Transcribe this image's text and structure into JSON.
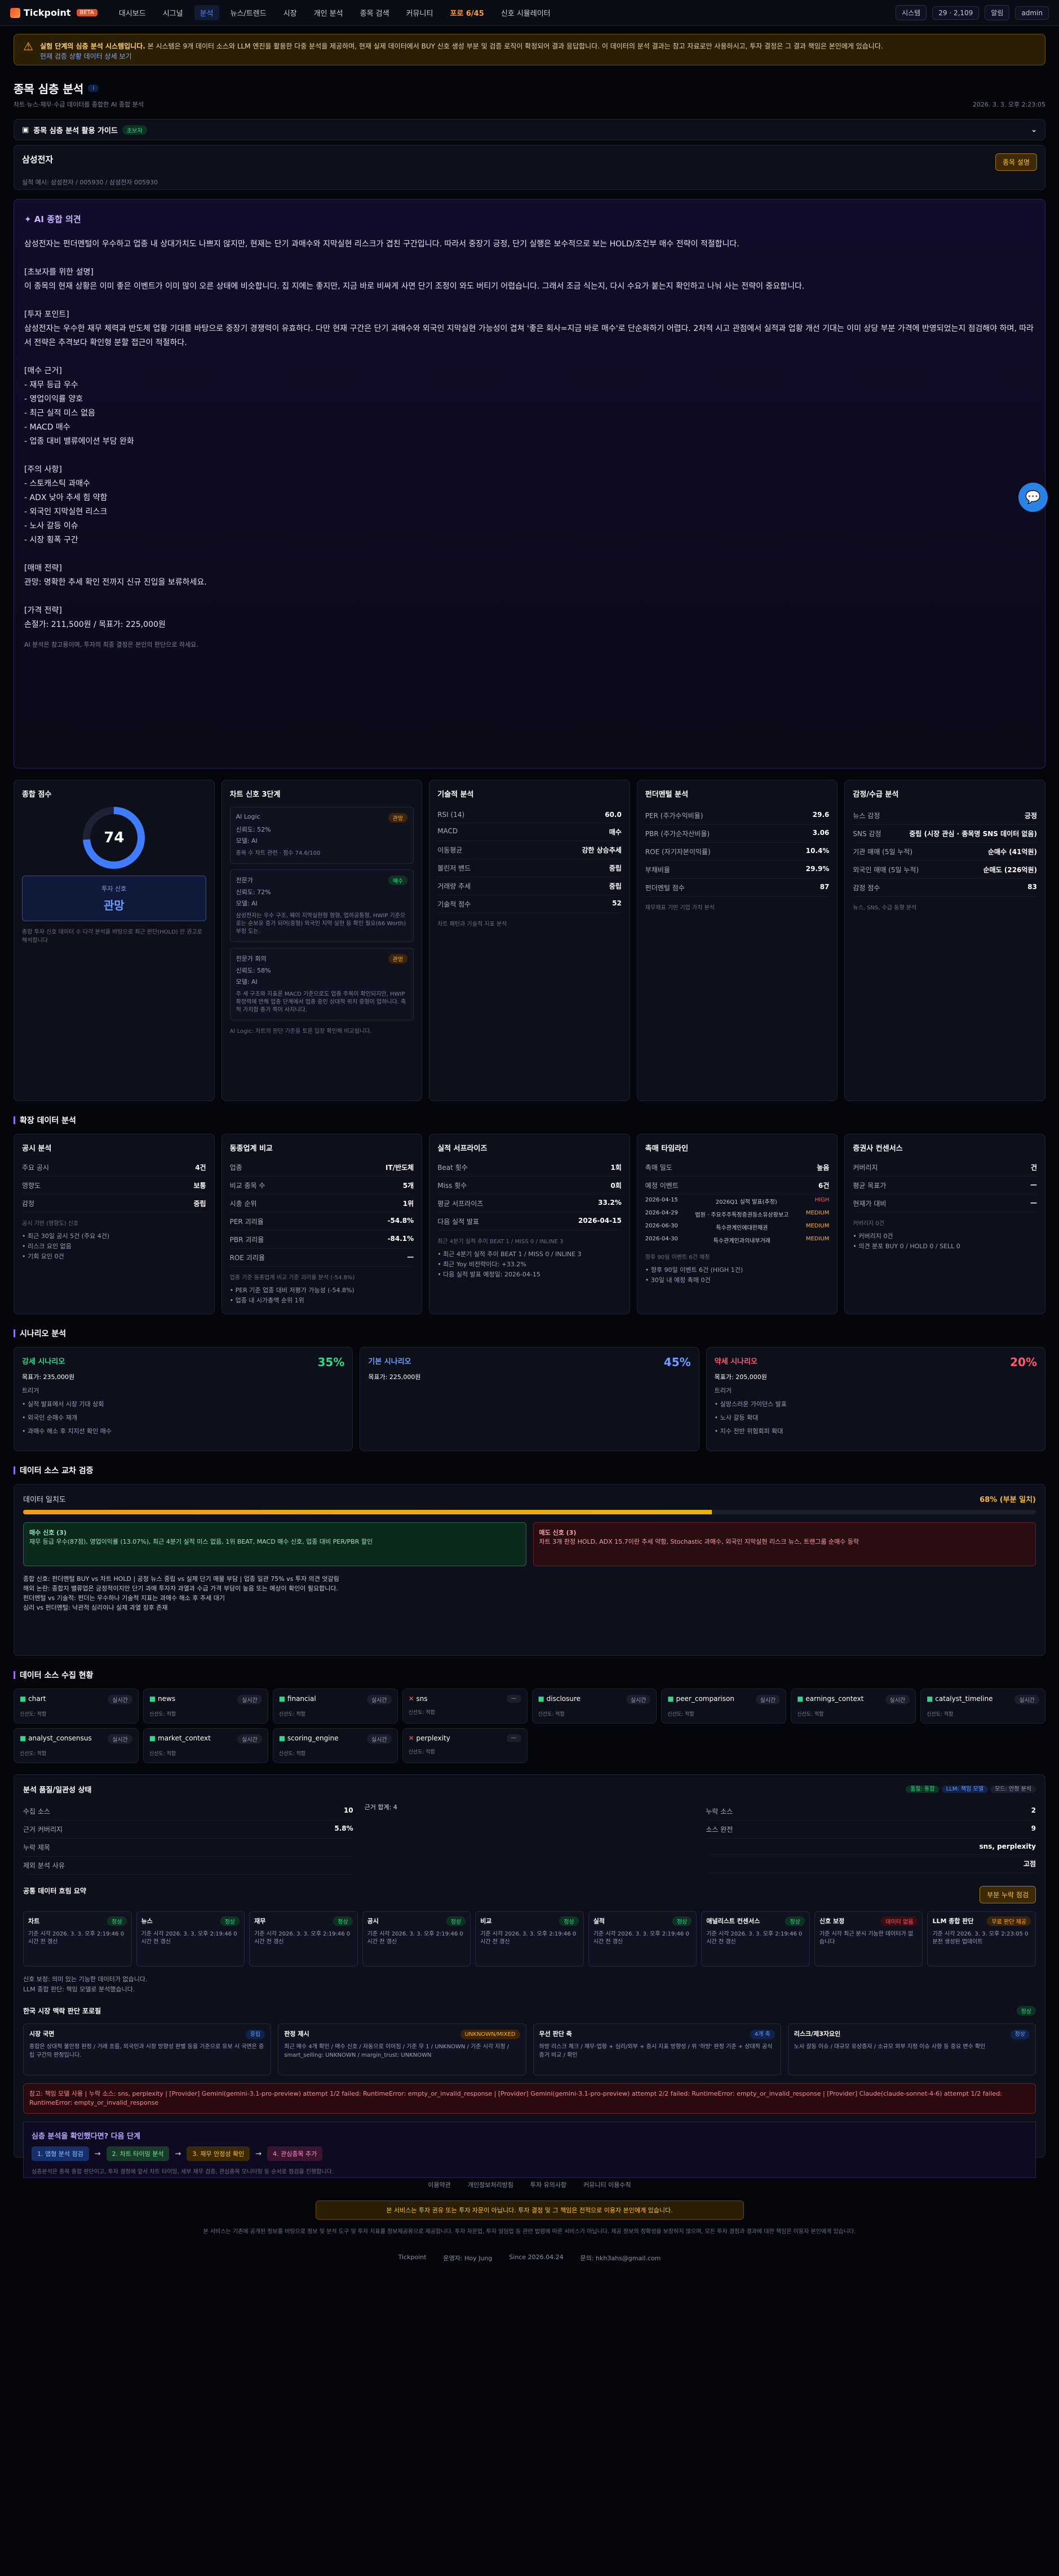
{
  "nav": {
    "brand": "Tickpoint",
    "badge": "BETA",
    "items": [
      "대시보드",
      "시그널",
      "분석",
      "뉴스/트렌드",
      "시장",
      "개인 분석",
      "종목 검색",
      "커뮤니티",
      "포로 6/45",
      "신호 시뮬레이터"
    ],
    "right": [
      "시스템",
      "29",
      "2,109",
      "알림",
      "admin"
    ]
  },
  "warning": {
    "title": "실험 단계의 심층 분석 시스템입니다.",
    "text": " 본 시스템은 9개 데이터 소스와 LLM 엔진을 활용한 다중 분석을 제공하며, 현재 실제 데이터에서 BUY 신호 생성 부분 및 검증 로직이 확정되어 결과 응답합니다. 이 데이터의 분석 결과는 참고 자료로만 사용하시고, 투자 결정은 그 결과 책임은 본인에게 있습니다.",
    "link": "현재 검증 상황 데이터 상세 보기"
  },
  "header": {
    "title": "종목 심층 분석",
    "sub": "차트·뉴스·재무·수급 데이터를 종합한 AI 종합 분석",
    "date": "2026. 3. 3. 오후 2:23:05"
  },
  "guide": {
    "label": "종목 심층 분석 활용 가이드",
    "tag": "초보자"
  },
  "stock": {
    "name": "삼성전자",
    "meta": "실적 예시: 삼성전자 / 005930 / 삼성전자 005930",
    "button": "종목 설명"
  },
  "ai": {
    "title": "AI 종합 의견",
    "body": "삼성전자는 펀더멘털이 우수하고 업종 내 상대가치도 나쁘지 않지만, 현재는 단기 과매수와 지막실현 리스크가 겹친 구간입니다. 따라서 중장기 긍정, 단기 실행은 보수적으로 보는 HOLD/조건부 매수 전략이 적절합니다.\n\n[초보자를 위한 설명]\n이 종목의 현재 상황은 이미 좋은 이벤트가 이미 많이 오른 상태에 비슷합니다. 집 지에는 좋지만, 지금 바로 비싸게 사면 단기 조정이 와도 버티기 어렵습니다. 그래서 조금 식는지, 다시 수요가 붙는지 확인하고 나눠 사는 전략이 중요합니다.\n\n[투자 포인트]\n삼성전자는 우수한 재무 체력과 반도체 업황 기대를 바탕으로 중장기 경쟁력이 유효하다. 다만 현재 구간은 단기 과매수와 외국인 지막실현 가능성이 겹쳐 '좋은 회사=지금 바로 매수'로 단순화하기 어렵다. 2차적 시고 관점에서 실적과 업황 개선 기대는 이미 상당 부분 가격에 반영되었는지 점검해야 하며, 따라서 전략은 추격보다 확인형 분할 접근이 적절하다.\n\n[매수 근거]\n- 재무 등급 우수\n- 영업이익률 양호\n- 최근 실적 미스 없음\n- MACD 매수\n- 업종 대비 밸류에이션 부담 완화\n\n[주의 사항]\n- 스토캐스틱 과매수\n- ADX 낮아 추세 힘 약함\n- 외국인 지막실현 리스크\n- 노사 갈등 이슈\n- 시장 횡폭 구간\n\n[매매 전략]\n관망: 명확한 추세 확인 전까지 신규 진입을 보류하세요.\n\n[가격 전략]\n손절가: 211,500원 / 목표가: 225,000원",
    "foot": "AI 분석은 참고용이며, 투자의 최종 결정은 본인의 판단으로 하세요."
  },
  "cards": {
    "score": {
      "title": "종합 점수",
      "value": "74",
      "label": "투자 신호",
      "opinion": "관망",
      "note": "종합 투자 신호 데이터 수 다각 분석을 바탕으로 최근 판단(HOLD) 만 권고로 해석합니다"
    },
    "signals": {
      "title": "차트 신호 3단계",
      "items": [
        {
          "name": "AI Logic",
          "tag": "관망",
          "conf": "신뢰도: 52%",
          "model": "모델: AI",
          "desc": "종목 수 차트 관련 · 점수 74.6/100"
        },
        {
          "name": "전문가",
          "tag": "매수",
          "conf": "신뢰도: 72%",
          "model": "모델: AI",
          "desc": "삼성전자는 우수 구조, 웨이 지막실현형 형형, 업하공통형, HWIP 기준으로는 순보유 증가 되어(중형) 외국인 지막 실현 등 확인 필요(66 Worth) 부정 도는."
        },
        {
          "name": "전문가 회의",
          "tag": "관망",
          "conf": "신뢰도: 58%",
          "model": "모델: AI",
          "desc": "주 세 구조와 지표론 MACD 기준으로도 업종 주목이 확인되지만, HWIP 확정력에 반해 업종 단계에서 업종 중인 상대적 위치 중형이 업하니다. 축적 가치합 종가 쪽이 사지니다."
        }
      ],
      "note": "AI Logic: 차트의 판단 기준을 토론 입장 확인해 비교됩니다."
    },
    "tech": {
      "title": "기술적 분석",
      "rows": [
        [
          "RSI (14)",
          "60.0"
        ],
        [
          "MACD",
          "매수"
        ],
        [
          "이동평균",
          "강한 상승추세"
        ],
        [
          "볼린저 밴드",
          "중립"
        ],
        [
          "거래량 추세",
          "중립"
        ],
        [
          "기술적 점수",
          "52"
        ]
      ],
      "note": "차트 패턴과 기술적 지표 분석"
    },
    "fund": {
      "title": "펀더멘털 분석",
      "rows": [
        [
          "PER (주가수익비율)",
          "29.6"
        ],
        [
          "PBR (주가순자산비율)",
          "3.06"
        ],
        [
          "ROE (자기자본이익률)",
          "10.4%"
        ],
        [
          "부채비율",
          "29.9%"
        ],
        [
          "펀더멘털 점수",
          "87"
        ]
      ],
      "note": "재무제표 기반 기업 가치 분석"
    },
    "sent": {
      "title": "감정/수급 분석",
      "rows": [
        [
          "뉴스 감정",
          "긍정"
        ],
        [
          "SNS 감정",
          "중립 (시장 관심 · 종목명 SNS 데이터 없음)"
        ],
        [
          "기관 매매 (5일 누적)",
          "순매수 (41억원)"
        ],
        [
          "외국인 매매 (5일 누적)",
          "순매도 (226억원)"
        ],
        [
          "감정 점수",
          "83"
        ]
      ],
      "note": "뉴스, SNS, 수급 동향 분석"
    }
  },
  "ext": {
    "title": "확장 데이터 분석",
    "disc": {
      "title": "공시 분석",
      "rows": [
        [
          "주요 공시",
          "4건"
        ],
        [
          "영향도",
          "보통"
        ],
        [
          "감정",
          "중립"
        ]
      ],
      "note": "공시 기반 (영향도) 신호",
      "list": [
        "최근 30일 공시 5건 (주요 4건)",
        "리스크 요인 없음",
        "기회 요인 0건"
      ]
    },
    "peer": {
      "title": "동종업계 비교",
      "rows": [
        [
          "업종",
          "IT/반도체"
        ],
        [
          "비교 종목 수",
          "5개"
        ],
        [
          "시총 순위",
          "1위"
        ],
        [
          "PER 괴리율",
          "-54.8%"
        ],
        [
          "PBR 괴리율",
          "-84.1%"
        ],
        [
          "ROE 괴리율",
          "—"
        ]
      ],
      "note": "업종 기준 동종업계 비교 기준 괴리율 분석 (-54.8%)",
      "list": [
        "PER 기준 업종 대비 저평가 가능성 (-54.8%)",
        "업종 내 시가총액 순위 1위"
      ]
    },
    "earn": {
      "title": "실적 서프라이즈",
      "rows": [
        [
          "Beat 횟수",
          "1회"
        ],
        [
          "Miss 횟수",
          "0회"
        ],
        [
          "평균 서프라이즈",
          "33.2%"
        ],
        [
          "다음 실적 발표",
          "2026-04-15"
        ]
      ],
      "note": "최근 4분기 실적 추이 BEAT 1 / MISS 0 / INLINE 3",
      "list": [
        "최근 4분기 실적 추이 BEAT 1 / MISS 0 / INLINE 3",
        "최근 Yoy 비전략이다: +33.2%",
        "다음 실적 발표 예정일: 2026-04-15"
      ]
    },
    "cat": {
      "title": "촉매 타임라인",
      "rows": [
        [
          "촉매 밀도",
          "높음"
        ],
        [
          "예정 이벤트",
          "6건"
        ]
      ],
      "events": [
        [
          "2026-04-15",
          "2026Q1 실적 발표(추정)",
          "HIGH"
        ],
        [
          "2026-04-29",
          "법원 · 주요주주특정증권등소유상황보고",
          "MEDIUM"
        ],
        [
          "2026-06-30",
          "특수관계인에대한채권",
          "MEDIUM"
        ],
        [
          "2026-04-30",
          "특수관계인과의내부거래",
          "MEDIUM"
        ]
      ],
      "note": "향후 90일 이벤트 6건 예정",
      "list": [
        "향후 90일 이벤트 6건 (HIGH 1건)",
        "30일 내 예정 촉매 0건"
      ]
    },
    "cons": {
      "title": "증권사 컨센서스",
      "rows": [
        [
          "커버리지",
          "건"
        ],
        [
          "평균 목표가",
          "—"
        ],
        [
          "현재가 대비",
          "—"
        ]
      ],
      "note": "커버리지 0건",
      "list": [
        "커버리지 0건",
        "의견 분포 BUY 0 / HOLD 0 / SELL 0"
      ]
    }
  },
  "scen": {
    "title": "시나리오 분석",
    "items": [
      {
        "name": "강세 시나리오",
        "pct": "35%",
        "target": "목표가: 235,000원",
        "label": "트리거",
        "list": [
          "실적 발표에서 시장 기대 상회",
          "외국인 순매수 재개",
          "과매수 해소 후 지지선 확인 매수"
        ]
      },
      {
        "name": "기본 시나리오",
        "pct": "45%",
        "target": "목표가: 225,000원",
        "label": "",
        "list": []
      },
      {
        "name": "약세 시나리오",
        "pct": "20%",
        "target": "목표가: 205,000원",
        "label": "트리거",
        "list": [
          "실망스러운 가이던스 발표",
          "노사 갈등 확대",
          "지수 전반 위험회피 확대"
        ]
      }
    ]
  },
  "verify": {
    "title": "데이터 소스 교차 검증",
    "label": "데이터 일치도",
    "value": "68% (부분 일치)",
    "pct": 68,
    "buy": "매수 신호 (3)",
    "buytxt": "재무 등급 우수(87점), 영업이익률 (13.07%), 최근 4분기 실적 미스 없음, 1위 BEAT, MACD 매수 신호, 업종 대비 PER/PBR 할인",
    "sell": "매도 신호 (3)",
    "selltxt": "차트 3개 판정 HOLD, ADX 15.7이란 추세 약함, Stochastic 과매수, 외국인 지막실현 리스크 뉴스, 트랜그룹 순매수 등락",
    "lines": [
      "종합 신호: 펀더멘털 BUY vs 차트 HOLD | 공정 뉴스 중립 vs 실제 단기 매물 부담 | 업종 일관 75% vs 투자 의견 엇갈림",
      "해외 논란: 종합지 밸류업은 긍정적이지만 단기 과매 투자자 과열과 수급 가격 부담이 높음 또는 예상이 확인이 필요합니다.",
      "펀더멘털 vs 기술적: 펀더는 우수하나 기술적 지표는 과매수 해소 후 추세 대기",
      "심리 vs 펀더멘털: 낙관적 심리이나 실제 과열 징후 존재"
    ]
  },
  "sources": {
    "title": "데이터 소스 수집 현황",
    "items": [
      [
        "chart",
        "ok",
        "실시간"
      ],
      [
        "news",
        "ok",
        "실시간"
      ],
      [
        "financial",
        "ok",
        "실시간"
      ],
      [
        "sns",
        "x",
        "—"
      ],
      [
        "disclosure",
        "ok",
        "실시간"
      ],
      [
        "peer_comparison",
        "ok",
        "실시간"
      ],
      [
        "earnings_context",
        "ok",
        "실시간"
      ],
      [
        "catalyst_timeline",
        "ok",
        "실시간"
      ],
      [
        "analyst_consensus",
        "ok",
        "실시간"
      ],
      [
        "market_context",
        "ok",
        "실시간"
      ],
      [
        "scoring_engine",
        "ok",
        "실시간"
      ],
      [
        "perplexity",
        "x",
        "—"
      ]
    ],
    "meta": "신선도: 적합"
  },
  "status": {
    "title": "분석 품질/일관성 상태",
    "tags": [
      "품질: 통합",
      "LLM: 책임 모델",
      "모드: 안정 분석"
    ],
    "left": [
      [
        "수집 소스",
        "10"
      ],
      [
        "근거 커버리지",
        "5.8%"
      ],
      [
        "누락 제목",
        ""
      ],
      [
        "제외 분석 사유",
        ""
      ]
    ],
    "mid": "근거 합계: 4",
    "right": [
      [
        "누락 소스",
        "2"
      ],
      [
        "소스 완전",
        "9"
      ],
      [
        "",
        "sns, perplexity"
      ],
      [
        "",
        "고점"
      ]
    ],
    "pipeline": "공통 데이터 흐림 요약",
    "pbtn": "부분 누락 점검",
    "steps": [
      [
        "차트",
        "정상",
        "기준 시각 2026. 3. 3. 오후 2:19:46 0시간 전 갱신"
      ],
      [
        "뉴스",
        "정상",
        "기준 시각 2026. 3. 3. 오후 2:19:46 0시간 전 갱신"
      ],
      [
        "재무",
        "정상",
        "기준 시각 2026. 3. 3. 오후 2:19:46 0시간 전 갱신"
      ],
      [
        "공시",
        "정상",
        "기준 시각 2026. 3. 3. 오후 2:19:46 0시간 전 갱신"
      ],
      [
        "비교",
        "정상",
        "기준 시각 2026. 3. 3. 오후 2:19:46 0시간 전 갱신"
      ],
      [
        "실적",
        "정상",
        "기준 시각 2026. 3. 3. 오후 2:19:46 0시간 전 갱신"
      ],
      [
        "애널리스트 컨센서스",
        "정상",
        "기준 시각 2026. 3. 3. 오후 2:19:46 0시간 전 갱신"
      ],
      [
        "신호 보정",
        "데이터 없음",
        "기준 시각 최근 분시 기능한 데이터가 없습니다"
      ],
      [
        "LLM 종합 판단",
        "무료 판단 제공",
        "기준 시각 2026. 3. 3. 오후 2:23:05 0분전 생성된 업데이트"
      ]
    ],
    "smtitle": "한국 시장 맥락 판단 포로필",
    "smtag": "정상",
    "sm": [
      [
        "시장 국면",
        "중립",
        "종합은 상대적 불안정 판정 / 거래 흐름, 외국인과 시장 방향성 판별 등을 기준으로 유보 시 국면은 중립 구간의 판정입니다."
      ],
      [
        "판정 제시",
        "UNKNOWN/MIXED",
        "최근 매수 4개 확인 / 매수 신호 / 자동으로 이어짐 / 기준 무 1 / UNKNOWN / 기준 시각 지정 / smart_selling: UNKNOWN / margin_trust: UNKNOWN"
      ],
      [
        "우선 판단 축",
        "4개 축",
        "하방 리스크 체크 / 재무·업황 + 심리/외부 + 증시 지표 방향성 / 위 '하방' 판정 기준 + 상대적 공식 증거 비교 / 확인"
      ],
      [
        "리스크/제3자요인",
        "정상",
        "노사 갈등 이슈 / 대규모 유상증자 / 소규모 외부 지정 이슈 사항 등 중요 변수 확인"
      ]
    ],
    "note1": "신호 보정: 의미 있는 기능한 데이터가 없습니다.",
    "note2": "LLM 종합 판단: 책임 모델로 분석했습니다."
  },
  "error": "참고: 책임 모델 사용 | 누락 소스: sns, perplexity | [Provider] Gemini(gemini-3.1-pro-preview) attempt 1/2 failed: RuntimeError: empty_or_invalid_response | [Provider] Gemini(gemini-3.1-pro-preview) attempt 2/2 failed: RuntimeError: empty_or_invalid_response | [Provider] Claude(claude-sonnet-4-6) attempt 1/2 failed: RuntimeError: empty_or_invalid_response",
  "flow": {
    "title": "심층 분석을 확인했다면? 다음 단계",
    "chips": [
      "1. 앱형 분석 점검",
      "2. 차트 타이밍 분석",
      "3. 재무 안정성 확인",
      "4. 관심종목 추가"
    ],
    "note": "심층분석은 종목 종합 판단이고, 투자 결정에 앞서 차트 타이밍, 세부 재무 검증, 관심종목 모니터링 등 순서로 점검을 진행합니다."
  },
  "footer": {
    "links": [
      "이용약관",
      "개인정보처리방침",
      "투자 유의사항",
      "커뮤니티 이용수칙"
    ],
    "warn": "본 서비스는 투자 권유 또는 투자 자문이 아닙니다. 투자 결정 및 그 책임은 전적으로 이용자 본인에게 있습니다.",
    "small": "본 서비스는 기존에 공개된 정보를 바탕으로 정보 및 분석 도구 및 투자 지표를 정보제공용으로 제공합니다. 투자 자문업, 투자 일임업 등 관련 법령에 따른 서비스가 아닙니다. 제공 정보의 정확성을 보장하지 않으며, 모든 투자 결정과 결과에 대한 책임은 이용자 본인에게 있습니다.",
    "copy": [
      "Tickpoint",
      "운영자: Hoy Jung",
      "Since 2026.04.24",
      "문의: hkh3ahs@gmail.com"
    ]
  }
}
